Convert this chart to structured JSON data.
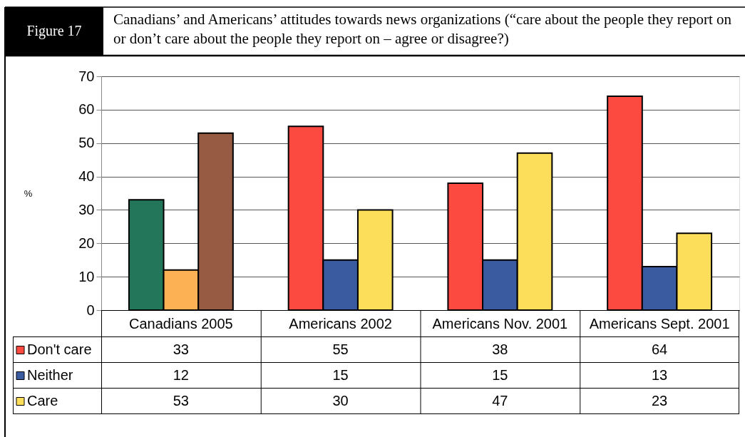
{
  "chart_data": {
    "type": "bar",
    "title": "Figure 17",
    "subtitle": "Canadians’ and Americans’ attitudes towards news organizations (“care about the people they report on or don’t care about the people they report on – agree or disagree?)",
    "ylabel": "%",
    "categories": [
      "Canadians 2005",
      "Americans 2002",
      "Americans Nov. 2001",
      "Americans Sept. 2001"
    ],
    "series": [
      {
        "name": "Don't care",
        "colors": [
          "#23765a",
          "#fc4a41",
          "#fc4a41",
          "#fc4a41"
        ],
        "values": [
          33,
          55,
          38,
          64
        ]
      },
      {
        "name": "Neither",
        "colors": [
          "#fbb154",
          "#3a5ba0",
          "#3a5ba0",
          "#3a5ba0"
        ],
        "values": [
          12,
          15,
          15,
          13
        ]
      },
      {
        "name": "Care",
        "colors": [
          "#965b42",
          "#fdde5a",
          "#fdde5a",
          "#fdde5a"
        ],
        "values": [
          53,
          30,
          47,
          23
        ]
      }
    ],
    "ylim": [
      0,
      70
    ],
    "yticks": [
      0,
      10,
      20,
      30,
      40,
      50,
      60,
      70
    ],
    "grid": "y",
    "data_labels": true,
    "legend": "bottom left"
  }
}
